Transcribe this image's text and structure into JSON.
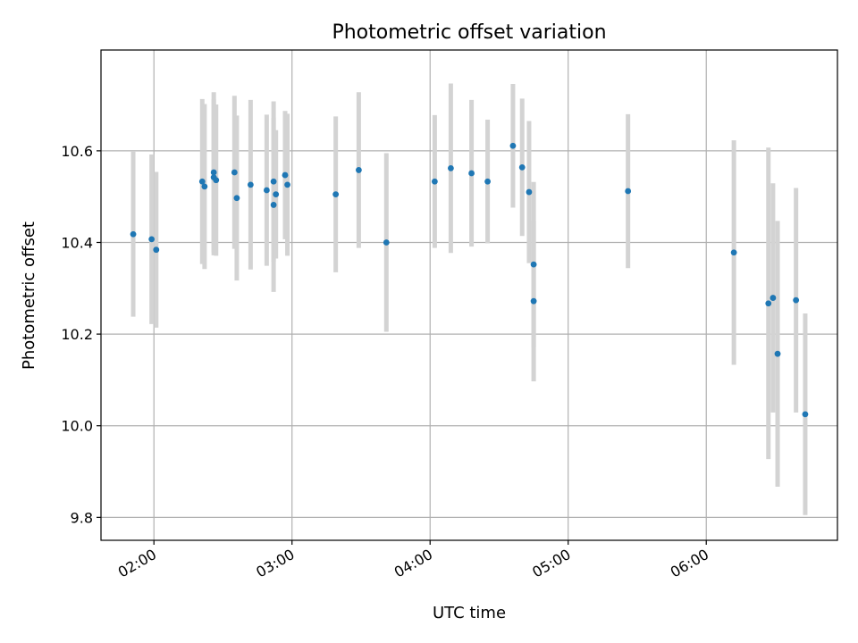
{
  "chart_data": {
    "type": "scatter",
    "title": "Photometric offset variation",
    "xlabel": "UTC time",
    "ylabel": "Photometric offset",
    "xlim": [
      "01:37",
      "06:57"
    ],
    "ylim": [
      9.75,
      10.82
    ],
    "x_ticks": [
      "02:00",
      "03:00",
      "04:00",
      "05:00",
      "06:00"
    ],
    "y_ticks": [
      "9.8",
      "10.0",
      "10.2",
      "10.4",
      "10.6"
    ],
    "grid": true,
    "colors": {
      "point": "#1f77b4",
      "errorbar": "#d3d3d3",
      "grid": "#b0b0b0"
    },
    "series": [
      {
        "x": [
          "01:51",
          "01:59",
          "02:01",
          "02:21",
          "02:22",
          "02:26",
          "02:26",
          "02:27",
          "02:35",
          "02:36",
          "02:42",
          "02:49",
          "02:52",
          "02:52",
          "02:53",
          "02:57",
          "02:58",
          "03:19",
          "03:29",
          "03:41",
          "04:02",
          "04:09",
          "04:18",
          "04:25",
          "04:36",
          "04:40",
          "04:43",
          "04:45",
          "04:45",
          "05:26",
          "06:12",
          "06:27",
          "06:29",
          "06:31",
          "06:39",
          "06:43"
        ],
        "y": [
          10.418,
          10.407,
          10.384,
          10.533,
          10.522,
          10.553,
          10.542,
          10.536,
          10.553,
          10.497,
          10.526,
          10.514,
          10.533,
          10.482,
          10.505,
          10.547,
          10.526,
          10.505,
          10.558,
          10.4,
          10.533,
          10.562,
          10.551,
          10.533,
          10.611,
          10.564,
          10.51,
          10.352,
          10.272,
          10.512,
          10.378,
          10.267,
          10.279,
          10.157,
          10.274,
          10.025
        ],
        "yerr": [
          0.18,
          0.185,
          0.17,
          0.18,
          0.18,
          0.175,
          0.17,
          0.165,
          0.167,
          0.18,
          0.185,
          0.165,
          0.175,
          0.19,
          0.14,
          0.14,
          0.155,
          0.17,
          0.17,
          0.195,
          0.145,
          0.185,
          0.16,
          0.135,
          0.135,
          0.15,
          0.155,
          0.18,
          0.175,
          0.168,
          0.245,
          0.34,
          0.25,
          0.29,
          0.245,
          0.22
        ]
      }
    ]
  }
}
